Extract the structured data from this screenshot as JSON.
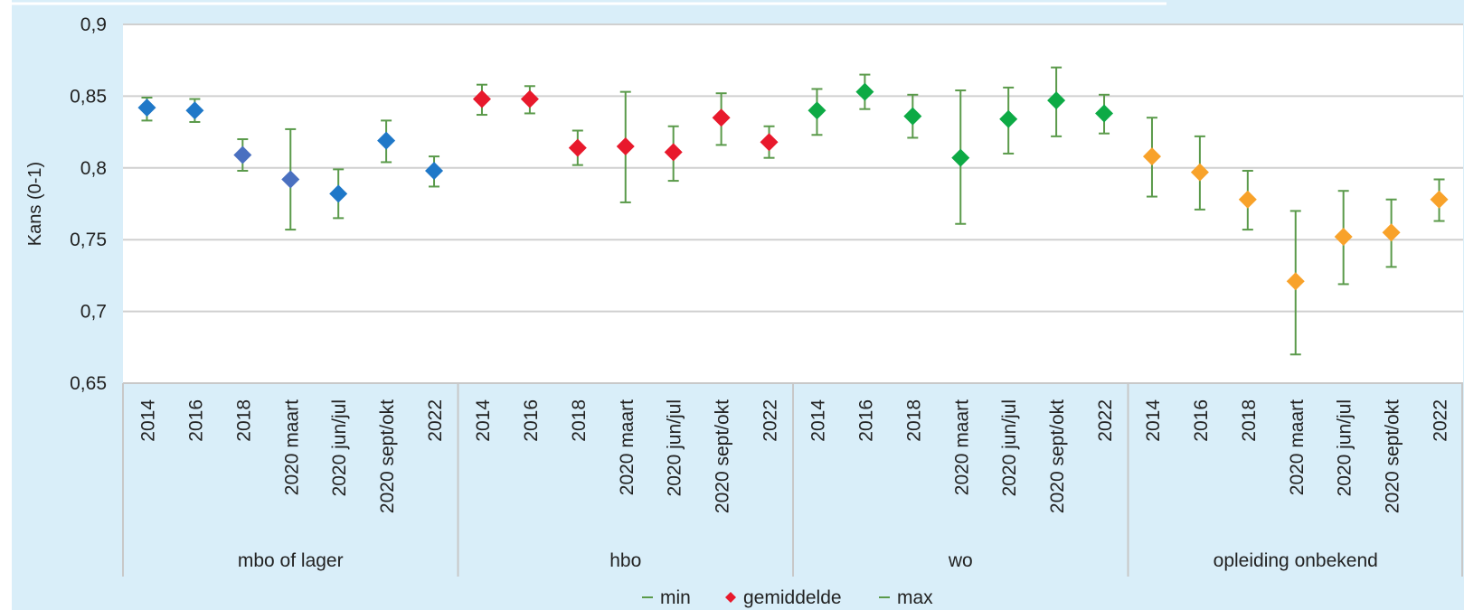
{
  "chart_data": {
    "type": "scatter",
    "ylabel": "Kans (0-1)",
    "ylim": [
      0.65,
      0.9
    ],
    "yticks": [
      0.65,
      0.7,
      0.75,
      0.8,
      0.85,
      0.9
    ],
    "ytick_labels": [
      "0,65",
      "0,7",
      "0,75",
      "0,8",
      "0,85",
      "0,9"
    ],
    "grid": "horizontal",
    "legend": [
      "min",
      "gemiddelde",
      "max"
    ],
    "legend_position": "bottom",
    "colors": {
      "background": "#d9eef9",
      "plot": "#ffffff",
      "grid": "#d0d0d0",
      "errorbar": "#5a9a4a",
      "mbo": "#1f78c8",
      "mbo_alt": "#4a70c0",
      "hbo": "#e8192c",
      "wo": "#0daa45",
      "onbekend": "#f8a22a"
    },
    "groups": [
      {
        "name": "mbo of lager",
        "color": "#1f78c8",
        "categories": [
          "2014",
          "2016",
          "2018",
          "2020 maart",
          "2020 jun/jul",
          "2020 sept/okt",
          "2022"
        ],
        "mean": [
          0.842,
          0.84,
          0.809,
          0.792,
          0.782,
          0.819,
          0.798
        ],
        "min": [
          0.833,
          0.832,
          0.798,
          0.757,
          0.765,
          0.804,
          0.787
        ],
        "max": [
          0.849,
          0.848,
          0.82,
          0.827,
          0.799,
          0.833,
          0.808
        ]
      },
      {
        "name": "hbo",
        "color": "#e8192c",
        "categories": [
          "2014",
          "2016",
          "2018",
          "2020 maart",
          "2020 jun/jul",
          "2020 sept/okt",
          "2022"
        ],
        "mean": [
          0.848,
          0.848,
          0.814,
          0.815,
          0.811,
          0.835,
          0.818
        ],
        "min": [
          0.837,
          0.838,
          0.802,
          0.776,
          0.791,
          0.816,
          0.807
        ],
        "max": [
          0.858,
          0.857,
          0.826,
          0.853,
          0.829,
          0.852,
          0.829
        ]
      },
      {
        "name": "wo",
        "color": "#0daa45",
        "categories": [
          "2014",
          "2016",
          "2018",
          "2020 maart",
          "2020 jun/jul",
          "2020 sept/okt",
          "2022"
        ],
        "mean": [
          0.84,
          0.853,
          0.836,
          0.807,
          0.834,
          0.847,
          0.838
        ],
        "min": [
          0.823,
          0.841,
          0.821,
          0.761,
          0.81,
          0.822,
          0.824
        ],
        "max": [
          0.855,
          0.865,
          0.851,
          0.854,
          0.856,
          0.87,
          0.851
        ]
      },
      {
        "name": "opleiding onbekend",
        "color": "#f8a22a",
        "categories": [
          "2014",
          "2016",
          "2018",
          "2020 maart",
          "2020 jun/jul",
          "2020 sept/okt",
          "2022"
        ],
        "mean": [
          0.808,
          0.797,
          0.778,
          0.721,
          0.752,
          0.755,
          0.778
        ],
        "min": [
          0.78,
          0.771,
          0.757,
          0.67,
          0.719,
          0.731,
          0.763
        ],
        "max": [
          0.835,
          0.822,
          0.798,
          0.77,
          0.784,
          0.778,
          0.792
        ]
      }
    ]
  }
}
